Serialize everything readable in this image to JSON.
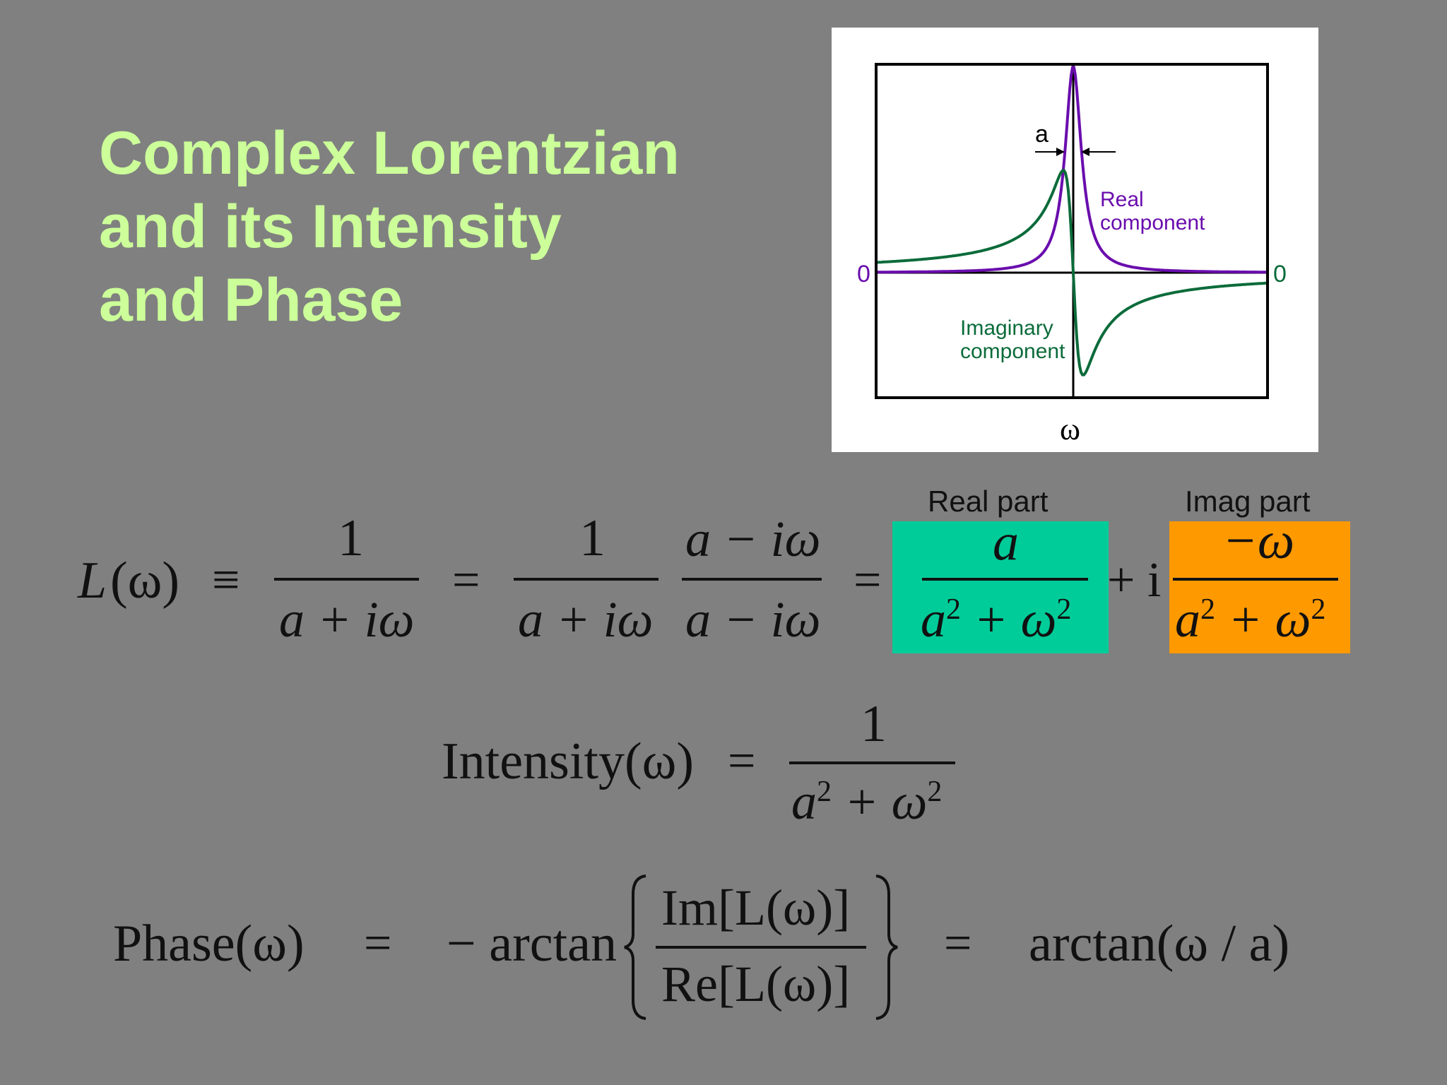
{
  "title": {
    "line1": "Complex Lorentzian",
    "line2": "and its Intensity",
    "line3": "and Phase"
  },
  "figure": {
    "width_label": "a",
    "real_label_line1": "Real",
    "real_label_line2": "component",
    "imag_label_line1": "Imaginary",
    "imag_label_line2": "component",
    "zero_left": "0",
    "zero_right": "0",
    "x_axis_label": "ω",
    "colors": {
      "real": "#6a0dad",
      "imaginary": "#0b6b3a"
    }
  },
  "equation1": {
    "lhs_func": "L",
    "lhs_arg": "(ω)",
    "equiv": "≡",
    "frac1_num": "1",
    "frac1_den": "a + iω",
    "eq1": "=",
    "frac2_num": "1",
    "frac2_den": "a + iω",
    "frac3_num": "a − iω",
    "frac3_den": "a − iω",
    "eq2": "=",
    "real_header": "Real part",
    "real_num": "a",
    "real_den_a": "a",
    "real_den_sup1": "2",
    "real_den_plus": " + ω",
    "real_den_sup2": "2",
    "plus_i": "+ i",
    "imag_header": "Imag part",
    "imag_num": "−ω",
    "imag_den_a": "a",
    "imag_den_sup1": "2",
    "imag_den_plus": " + ω",
    "imag_den_sup2": "2",
    "box_colors": {
      "real": "#00cc99",
      "imag": "#ff9900"
    }
  },
  "equation2": {
    "lhs": "Intensity(ω)",
    "eq": "=",
    "num": "1",
    "den_a": "a",
    "den_sup1": "2",
    "den_plus": " + ω",
    "den_sup2": "2"
  },
  "equation3": {
    "lhs": "Phase(ω)",
    "eq1": "=",
    "neg_arctan": "− arctan",
    "num": "Im[L(ω)]",
    "den": "Re[L(ω)]",
    "eq2": "=",
    "rhs": "arctan(ω / a)"
  }
}
